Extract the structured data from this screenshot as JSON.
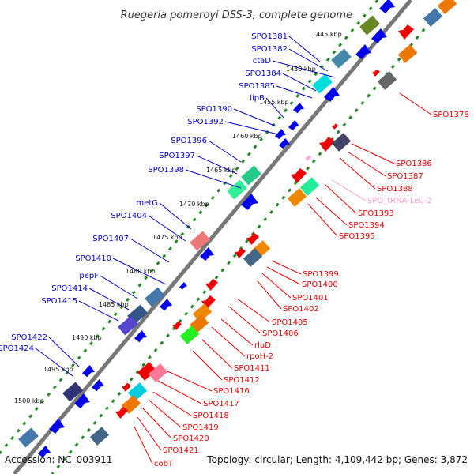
{
  "title": "Ruegeria pomeroyi DSS-3, complete genome",
  "accession": "Accession: NC_003911",
  "summary": "Topology: circular; Length: 4,109,442 bp; Genes: 3,872",
  "colors": {
    "forward_label": "#0000cc",
    "reverse_label": "#ee0000",
    "rna_label": "#ff99cc",
    "backbone": "#777777",
    "tick_dots": "#228822"
  },
  "ticks": [
    "1445 kbp",
    "1450 kbp",
    "1455 kbp",
    "1460 kbp",
    "1465 kbp",
    "1470 kbp",
    "1475 kbp",
    "1480 kbp",
    "1485 kbp",
    "1490 kbp",
    "1495 kbp",
    "1500 kbp"
  ],
  "forward_labels": [
    "SPO1381",
    "SPO1382",
    "ctaD",
    "SPO1384",
    "SPO1385",
    "lipB",
    "SPO1390",
    "SPO1392",
    "SPO1396",
    "SPO1397",
    "SPO1398",
    "metG",
    "SPO1404",
    "SPO1407",
    "SPO1410",
    "pepF",
    "SPO1414",
    "SPO1415",
    "SPO1422",
    "SPO1424"
  ],
  "reverse_labels": [
    "SPO1378",
    "SPO1386",
    "SPO1387",
    "SPO1388",
    "SPO_tRNA-Leu-2",
    "SPO1393",
    "SPO1394",
    "SPO1395",
    "SPO1399",
    "SPO1400",
    "SPO1401",
    "SPO1402",
    "SPO1405",
    "SPO1406",
    "rluD",
    "rpoH-2",
    "SPO1411",
    "SPO1412",
    "SPO1416",
    "SPO1417",
    "SPO1418",
    "SPO1419",
    "SPO1420",
    "SPO1421",
    "cobT"
  ]
}
